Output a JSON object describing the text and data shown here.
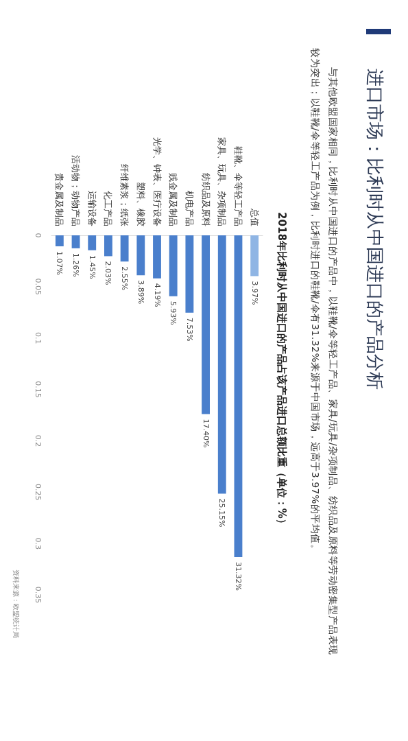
{
  "chart_data": {
    "type": "bar",
    "title": "进口市场：比利时从中国进口的产品分析",
    "subtitle": "与其他欧盟国家相同，比利时从中国进口的产品中，以鞋靴/伞等轻工产品、家具/玩具/杂项制品、纺织品及原料等劳动密集型产品表现较为突出；以鞋靴/伞等轻工产品为例，比利时进口的鞋靴/伞有31.32%来源于中国市场，远高于3.97%的平均值。",
    "annotations": [
      "2018年比利时从中国进口的产品占该产品进口总额比重（单位：%）",
      "资料来源：欧盟统计局"
    ],
    "categories": [
      "贵金属及制品",
      "活动物；动物产品",
      "运输设备",
      "化工产品",
      "纤维素浆；纸张",
      "塑料、橡胶",
      "光学、钟表、医疗设备",
      "贱金属及制品",
      "机电产品",
      "纺织品及原料",
      "家具、玩具、杂项制品",
      "鞋靴、伞等轻工产品",
      "总值"
    ],
    "values": [
      0.0107,
      0.0126,
      0.0145,
      0.0203,
      0.0255,
      0.0389,
      0.0419,
      0.0593,
      0.0753,
      0.174,
      0.2515,
      0.3132,
      0.0397
    ],
    "value_labels": [
      "1.07%",
      "1.26%",
      "1.45%",
      "2.03%",
      "2.55%",
      "3.89%",
      "4.19%",
      "5.93%",
      "7.53%",
      "17.40%",
      "25.15%",
      "31.32%",
      "3.97%"
    ],
    "colors": [
      "#4a7fcc",
      "#4a7fcc",
      "#4a7fcc",
      "#4a7fcc",
      "#4a7fcc",
      "#4a7fcc",
      "#4a7fcc",
      "#4a7fcc",
      "#4a7fcc",
      "#4a7fcc",
      "#4a7fcc",
      "#4a7fcc",
      "#8fb5e4"
    ],
    "ylim": [
      0.35,
      0
    ],
    "yticks": [
      0,
      0.05,
      0.1,
      0.15,
      0.2,
      0.25,
      0.3,
      0.35
    ]
  }
}
